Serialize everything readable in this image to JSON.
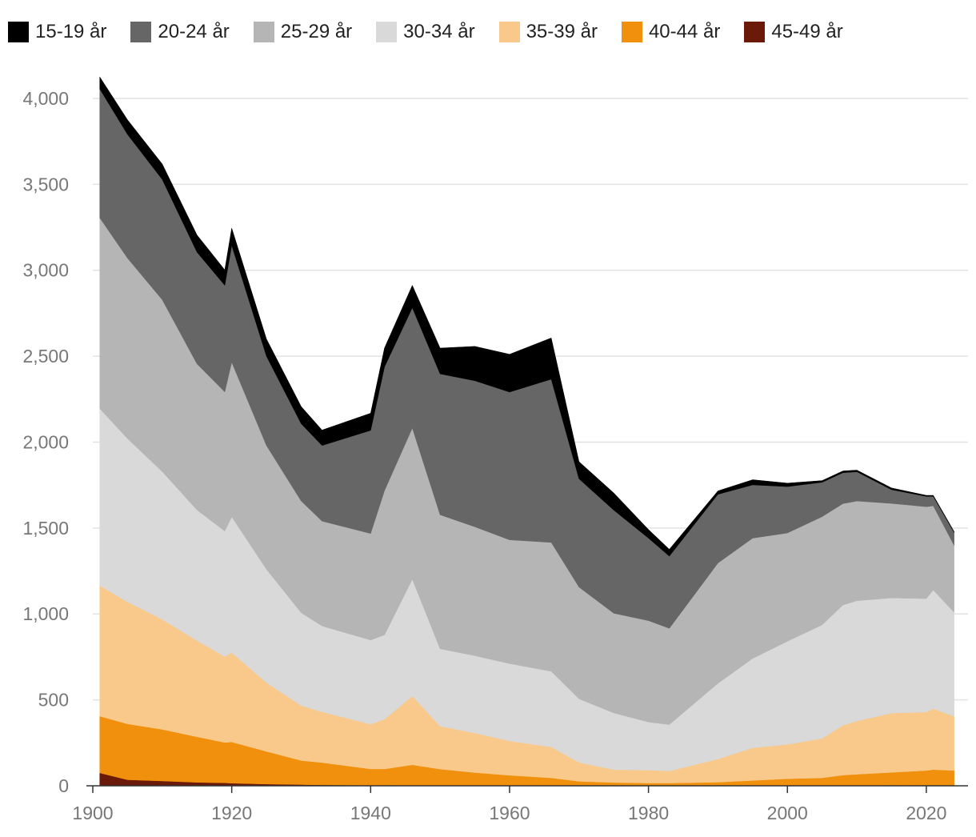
{
  "chart_data": {
    "type": "area",
    "stacked": true,
    "title": "",
    "xlabel": "",
    "ylabel": "",
    "xlim": [
      1900,
      2026
    ],
    "ylim": [
      0,
      4200
    ],
    "grid": true,
    "legend_position": "top",
    "x_ticks": [
      1900,
      1920,
      1940,
      1960,
      1980,
      2000,
      2020
    ],
    "y_ticks": [
      0,
      500,
      1000,
      1500,
      2000,
      2500,
      3000,
      3500,
      4000
    ],
    "y_tick_labels": [
      "0",
      "500",
      "1,000",
      "1,500",
      "2,000",
      "2,500",
      "3,000",
      "3,500",
      "4,000"
    ],
    "x": [
      1901,
      1905,
      1910,
      1915,
      1919,
      1920,
      1925,
      1930,
      1933,
      1940,
      1942,
      1946,
      1950,
      1955,
      1960,
      1966,
      1970,
      1975,
      1980,
      1983,
      1990,
      1995,
      2000,
      2005,
      2008,
      2010,
      2015,
      2020,
      2021,
      2024
    ],
    "series": [
      {
        "name": "45-49 år",
        "color": "#6b1a0a",
        "values": [
          75,
          35,
          28,
          20,
          17,
          15,
          10,
          7,
          5,
          3,
          3,
          2,
          2,
          2,
          1,
          1,
          1,
          1,
          1,
          1,
          1,
          1,
          1,
          1,
          2,
          2,
          3,
          4,
          4,
          4
        ]
      },
      {
        "name": "40-44 år",
        "color": "#f0900c",
        "values": [
          330,
          325,
          300,
          265,
          235,
          240,
          190,
          140,
          130,
          95,
          95,
          120,
          95,
          75,
          60,
          45,
          25,
          18,
          15,
          15,
          20,
          30,
          40,
          45,
          60,
          65,
          75,
          85,
          90,
          85
        ]
      },
      {
        "name": "35-39 år",
        "color": "#f8c98a",
        "values": [
          760,
          710,
          640,
          560,
          500,
          520,
          400,
          320,
          295,
          260,
          290,
          400,
          250,
          230,
          200,
          180,
          110,
          75,
          75,
          70,
          135,
          190,
          200,
          230,
          290,
          310,
          345,
          340,
          355,
          315
        ]
      },
      {
        "name": "30-34 år",
        "color": "#d9d9d9",
        "values": [
          1030,
          950,
          860,
          760,
          730,
          790,
          660,
          540,
          500,
          490,
          490,
          680,
          450,
          450,
          450,
          440,
          370,
          330,
          280,
          270,
          440,
          520,
          600,
          660,
          700,
          700,
          670,
          660,
          690,
          605
        ]
      },
      {
        "name": "25-29 år",
        "color": "#b5b5b5",
        "values": [
          1110,
          1050,
          1000,
          850,
          810,
          900,
          720,
          650,
          610,
          620,
          840,
          880,
          780,
          750,
          720,
          750,
          650,
          580,
          590,
          560,
          700,
          700,
          630,
          630,
          590,
          580,
          550,
          535,
          490,
          390
        ]
      },
      {
        "name": "20-24 år",
        "color": "#666666",
        "values": [
          750,
          720,
          700,
          650,
          620,
          680,
          520,
          450,
          440,
          600,
          720,
          700,
          820,
          850,
          860,
          950,
          630,
          600,
          480,
          420,
          400,
          310,
          270,
          200,
          180,
          170,
          80,
          60,
          55,
          75
        ]
      },
      {
        "name": "15-19 år",
        "color": "#000000",
        "values": [
          70,
          85,
          90,
          100,
          90,
          100,
          100,
          100,
          90,
          100,
          110,
          130,
          150,
          200,
          220,
          240,
          100,
          100,
          50,
          40,
          20,
          30,
          20,
          10,
          10,
          10,
          10,
          6,
          6,
          5
        ]
      }
    ]
  }
}
